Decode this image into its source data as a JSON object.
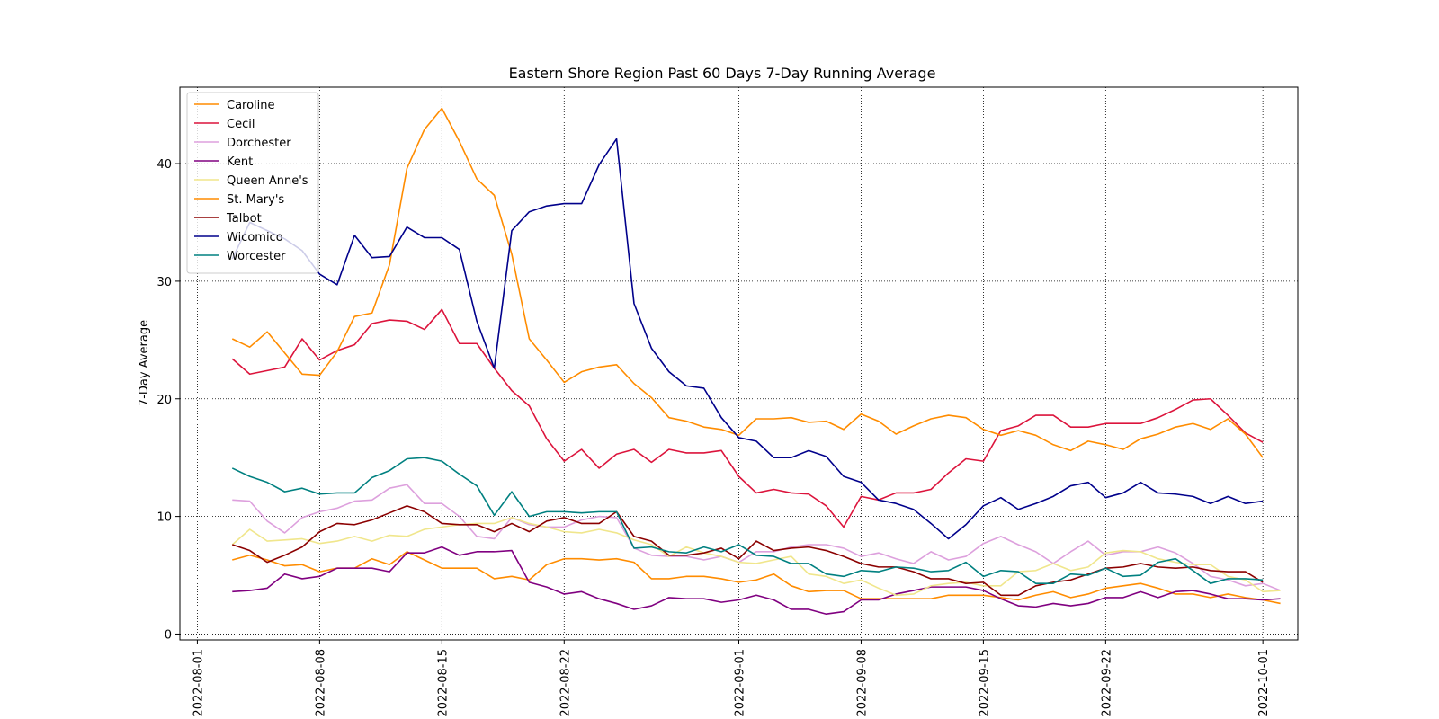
{
  "chart_data": {
    "type": "line",
    "title": "Eastern Shore Region Past 60 Days 7-Day Running Average",
    "xlabel": "",
    "ylabel": "7-Day Average",
    "xlim": [
      "2022-07-31",
      "2022-10-03"
    ],
    "ylim": [
      -0.5,
      46.5
    ],
    "x_start": "2022-08-03",
    "x_end": "2022-09-30",
    "x_ticks": [
      "2022-08-01",
      "2022-08-08",
      "2022-08-15",
      "2022-08-22",
      "2022-09-01",
      "2022-09-08",
      "2022-09-15",
      "2022-09-22",
      "2022-10-01"
    ],
    "y_ticks": [
      0,
      10,
      20,
      30,
      40
    ],
    "grid": true,
    "grid_style": "dotted",
    "legend_position": "top-left",
    "series": [
      {
        "name": "Caroline",
        "color": "#ff8c00",
        "values": [
          6.3,
          6.7,
          6.3,
          5.8,
          5.9,
          5.3,
          5.6,
          5.6,
          6.4,
          5.9,
          7.0,
          6.3,
          5.6,
          5.6,
          5.6,
          4.7,
          4.9,
          4.6,
          5.9,
          6.4,
          6.4,
          6.3,
          6.4,
          6.1,
          4.7,
          4.7,
          4.9,
          4.9,
          4.7,
          4.4,
          4.6,
          5.1,
          4.1,
          3.6,
          3.7,
          3.7,
          3.0,
          3.0,
          3.0,
          3.0,
          3.0,
          3.3,
          3.3,
          3.3,
          3.1,
          2.9,
          3.3,
          3.6,
          3.1,
          3.4,
          3.9,
          4.1,
          4.3,
          3.9,
          3.4,
          3.4,
          3.1,
          3.4,
          3.1,
          2.9,
          2.6
        ]
      },
      {
        "name": "Cecil",
        "color": "#dc143c",
        "values": [
          23.4,
          22.1,
          22.4,
          22.7,
          25.1,
          23.3,
          24.1,
          24.6,
          26.4,
          26.7,
          26.6,
          25.9,
          27.6,
          24.7,
          24.7,
          22.6,
          20.7,
          19.4,
          16.6,
          14.7,
          15.7,
          14.1,
          15.3,
          15.7,
          14.6,
          15.7,
          15.4,
          15.4,
          15.6,
          13.4,
          12.0,
          12.3,
          12.0,
          11.9,
          10.9,
          9.1,
          11.7,
          11.4,
          12.0,
          12.0,
          12.3,
          13.7,
          14.9,
          14.7,
          17.3,
          17.7,
          18.6,
          18.6,
          17.6,
          17.6,
          17.9,
          17.9,
          17.9,
          18.4,
          19.1,
          19.9,
          20.0,
          18.6,
          17.1,
          16.3
        ]
      },
      {
        "name": "Dorchester",
        "color": "#dda0dd",
        "values": [
          11.4,
          11.3,
          9.6,
          8.6,
          9.9,
          10.4,
          10.7,
          11.3,
          11.4,
          12.4,
          12.7,
          11.1,
          11.1,
          10.0,
          8.3,
          8.1,
          9.9,
          9.3,
          9.1,
          9.1,
          9.7,
          10.0,
          9.9,
          7.3,
          6.7,
          6.6,
          6.6,
          6.3,
          6.6,
          6.1,
          7.0,
          7.0,
          7.4,
          7.6,
          7.6,
          7.3,
          6.6,
          6.9,
          6.4,
          6.0,
          7.0,
          6.3,
          6.6,
          7.7,
          8.3,
          7.6,
          7.0,
          6.0,
          7.0,
          7.9,
          6.7,
          7.0,
          7.0,
          7.4,
          6.9,
          6.0,
          4.9,
          4.6,
          4.1,
          4.3,
          3.7
        ]
      },
      {
        "name": "Kent",
        "color": "#800080",
        "values": [
          3.6,
          3.7,
          3.9,
          5.1,
          4.7,
          4.9,
          5.6,
          5.6,
          5.6,
          5.3,
          6.9,
          6.9,
          7.4,
          6.7,
          7.0,
          7.0,
          7.1,
          4.4,
          4.0,
          3.4,
          3.6,
          3.0,
          2.6,
          2.1,
          2.4,
          3.1,
          3.0,
          3.0,
          2.7,
          2.9,
          3.3,
          2.9,
          2.1,
          2.1,
          1.7,
          1.9,
          2.9,
          2.9,
          3.4,
          3.7,
          4.0,
          4.0,
          4.0,
          3.7,
          3.0,
          2.4,
          2.3,
          2.6,
          2.4,
          2.6,
          3.1,
          3.1,
          3.6,
          3.1,
          3.6,
          3.7,
          3.4,
          3.0,
          3.0,
          2.9,
          3.0
        ]
      },
      {
        "name": "Queen Anne's",
        "color": "#f0e68c",
        "values": [
          7.6,
          8.9,
          7.9,
          8.0,
          8.1,
          7.7,
          7.9,
          8.3,
          7.9,
          8.4,
          8.3,
          8.9,
          9.1,
          9.3,
          9.4,
          9.4,
          9.9,
          9.4,
          9.1,
          8.7,
          8.6,
          8.9,
          8.6,
          8.0,
          7.6,
          6.6,
          7.4,
          6.9,
          6.6,
          6.1,
          6.0,
          6.3,
          6.6,
          5.1,
          4.9,
          4.3,
          4.6,
          3.9,
          3.3,
          3.4,
          4.1,
          4.3,
          4.4,
          4.1,
          4.1,
          5.3,
          5.4,
          6.0,
          5.4,
          5.7,
          6.9,
          7.1,
          7.0,
          6.4,
          6.1,
          5.9,
          5.9,
          4.9,
          4.6,
          3.6,
          3.7
        ]
      },
      {
        "name": "St. Mary's",
        "color": "#ff8c00",
        "values": [
          25.1,
          24.4,
          25.7,
          23.9,
          22.1,
          22.0,
          24.0,
          27.0,
          27.3,
          31.4,
          39.6,
          42.9,
          44.7,
          41.9,
          38.7,
          37.3,
          32.3,
          25.1,
          23.3,
          21.4,
          22.3,
          22.7,
          22.9,
          21.3,
          20.1,
          18.4,
          18.1,
          17.6,
          17.4,
          16.9,
          18.3,
          18.3,
          18.4,
          18.0,
          18.1,
          17.4,
          18.7,
          18.1,
          17.0,
          17.7,
          18.3,
          18.6,
          18.4,
          17.4,
          16.9,
          17.3,
          16.9,
          16.1,
          15.6,
          16.4,
          16.1,
          15.7,
          16.6,
          17.0,
          17.6,
          17.9,
          17.4,
          18.3,
          17.0,
          15.0
        ]
      },
      {
        "name": "Talbot",
        "color": "#8b0000",
        "values": [
          7.6,
          7.1,
          6.1,
          6.7,
          7.4,
          8.7,
          9.4,
          9.3,
          9.7,
          10.3,
          10.9,
          10.4,
          9.4,
          9.3,
          9.3,
          8.7,
          9.4,
          8.7,
          9.6,
          9.9,
          9.4,
          9.4,
          10.4,
          8.3,
          7.9,
          6.7,
          6.7,
          6.9,
          7.3,
          6.4,
          7.9,
          7.1,
          7.3,
          7.4,
          7.1,
          6.6,
          6.0,
          5.7,
          5.7,
          5.3,
          4.7,
          4.7,
          4.3,
          4.4,
          3.3,
          3.3,
          4.1,
          4.4,
          4.6,
          5.1,
          5.6,
          5.7,
          6.0,
          5.7,
          5.6,
          5.7,
          5.4,
          5.3,
          5.3,
          4.4
        ]
      },
      {
        "name": "Wicomico",
        "color": "#00008b",
        "values": [
          31.9,
          35.0,
          34.3,
          33.6,
          32.6,
          30.6,
          29.7,
          33.9,
          32.0,
          32.1,
          34.6,
          33.7,
          33.7,
          32.7,
          26.6,
          22.6,
          34.3,
          35.9,
          36.4,
          36.6,
          36.6,
          39.9,
          42.1,
          28.1,
          24.3,
          22.3,
          21.1,
          20.9,
          18.4,
          16.7,
          16.4,
          15.0,
          15.0,
          15.6,
          15.1,
          13.4,
          12.9,
          11.4,
          11.1,
          10.6,
          9.4,
          8.1,
          9.3,
          10.9,
          11.6,
          10.6,
          11.1,
          11.7,
          12.6,
          12.9,
          11.6,
          12.0,
          12.9,
          12.0,
          11.9,
          11.7,
          11.1,
          11.7,
          11.1,
          11.3
        ]
      },
      {
        "name": "Worcester",
        "color": "#008080",
        "values": [
          14.1,
          13.4,
          12.9,
          12.1,
          12.4,
          11.9,
          12.0,
          12.0,
          13.3,
          13.9,
          14.9,
          15.0,
          14.7,
          13.6,
          12.6,
          10.1,
          12.1,
          10.0,
          10.4,
          10.4,
          10.3,
          10.4,
          10.4,
          7.3,
          7.4,
          7.0,
          6.9,
          7.4,
          7.0,
          7.6,
          6.7,
          6.6,
          6.0,
          6.0,
          5.1,
          4.9,
          5.4,
          5.3,
          5.7,
          5.6,
          5.3,
          5.4,
          6.1,
          4.9,
          5.4,
          5.3,
          4.3,
          4.3,
          5.1,
          5.0,
          5.6,
          4.9,
          5.0,
          6.1,
          6.4,
          5.4,
          4.3,
          4.7,
          4.7,
          4.6
        ]
      }
    ]
  }
}
